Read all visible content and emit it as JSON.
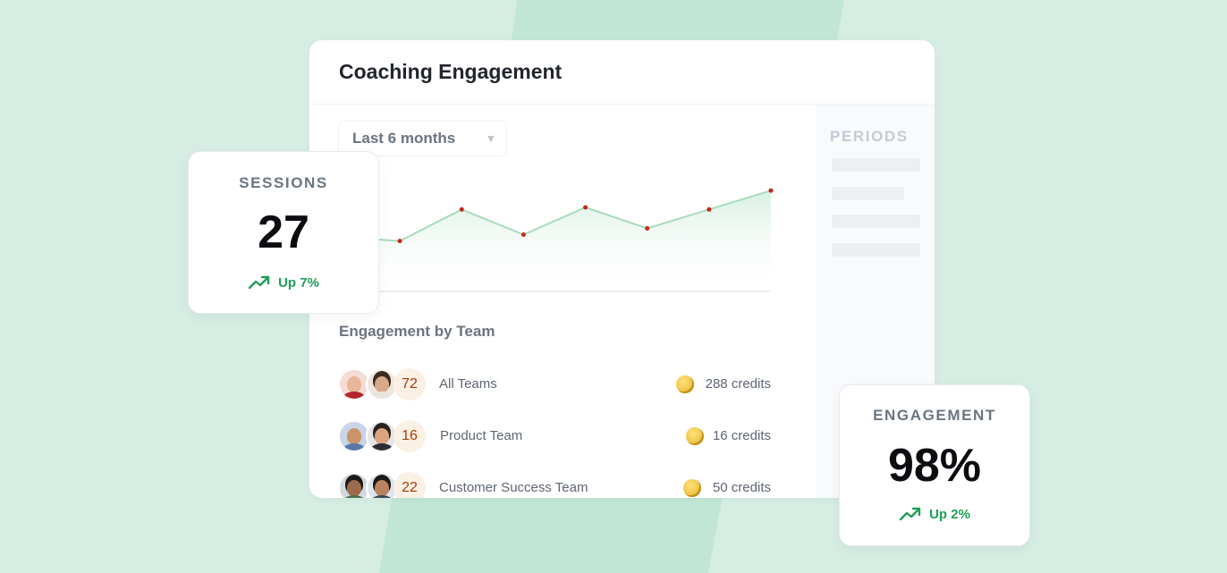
{
  "card": {
    "title": "Coaching Engagement",
    "dropdown": {
      "selected": "Last 6 months"
    },
    "side_panel": {
      "label": "PERIODS"
    },
    "section_title": "Engagement by Team",
    "teams": [
      {
        "name": "All Teams",
        "count": "72",
        "credits": "288 credits"
      },
      {
        "name": "Product Team",
        "count": "16",
        "credits": "16 credits"
      },
      {
        "name": "Customer Success Team",
        "count": "22",
        "credits": "50 credits"
      }
    ]
  },
  "chart_data": {
    "type": "area",
    "values": [
      52,
      48,
      78,
      54,
      80,
      60,
      78,
      96
    ],
    "ylim": [
      0,
      120
    ],
    "line_color": "#a6dcbc",
    "point_color": "#c5281c",
    "grid": false
  },
  "sessions": {
    "label": "SESSIONS",
    "value": "27",
    "trend": "Up 7%"
  },
  "engagement": {
    "label": "ENGAGEMENT",
    "value": "98%",
    "trend": "Up 2%"
  },
  "colors": {
    "background": "#d6ede3",
    "accent_green": "#1f9d57",
    "badge_text": "#a93c0b"
  },
  "icons": {
    "trend": "trending-up-icon",
    "coin": "coin-icon",
    "dropdown": "caret-down-icon"
  }
}
